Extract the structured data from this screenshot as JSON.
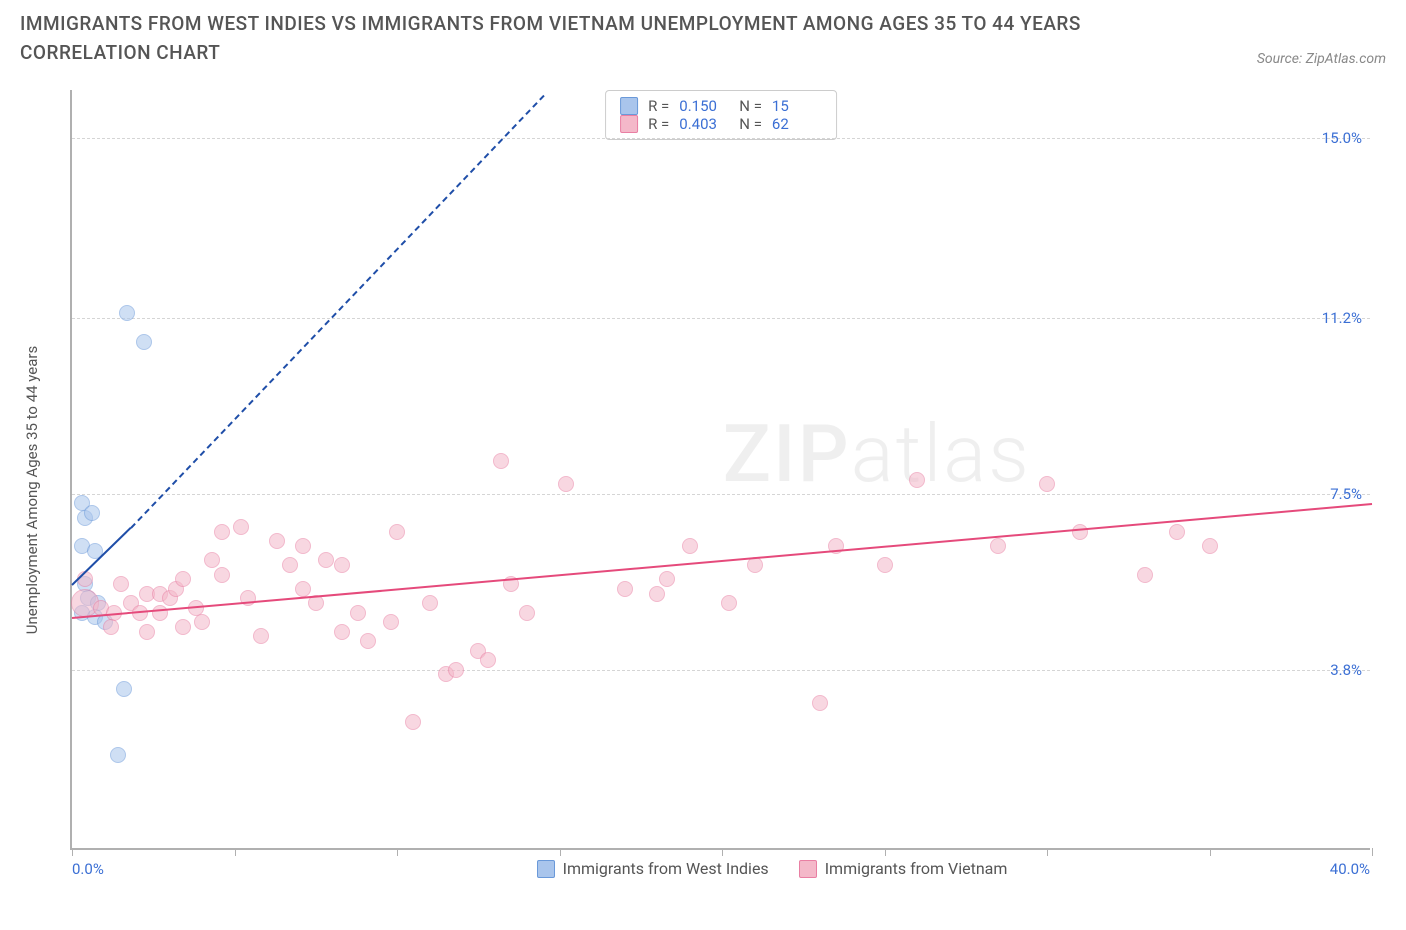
{
  "header": {
    "title": "IMMIGRANTS FROM WEST INDIES VS IMMIGRANTS FROM VIETNAM UNEMPLOYMENT AMONG AGES 35 TO 44 YEARS CORRELATION CHART",
    "source": "Source: ZipAtlas.com"
  },
  "watermark": {
    "bold": "ZIP",
    "light": "atlas"
  },
  "chart": {
    "type": "scatter",
    "background_color": "#ffffff",
    "grid_color": "#d5d5d5",
    "axis_color": "#b0b0b0",
    "y_axis": {
      "label": "Unemployment Among Ages 35 to 44 years",
      "label_fontsize": 15,
      "min": 0.0,
      "max": 16.0,
      "ticks": [
        3.8,
        7.5,
        11.2,
        15.0
      ],
      "tick_labels": [
        "3.8%",
        "7.5%",
        "11.2%",
        "15.0%"
      ],
      "tick_color": "#3b6fd4"
    },
    "x_axis": {
      "min": 0.0,
      "max": 40.0,
      "min_label": "0.0%",
      "max_label": "40.0%",
      "tick_positions": [
        0,
        5,
        10,
        15,
        20,
        25,
        30,
        35,
        40
      ],
      "tick_color": "#3b6fd4"
    },
    "series": [
      {
        "name": "Immigrants from West Indies",
        "fill_color": "#a9c5ec",
        "stroke_color": "#6a99d9",
        "fill_opacity": 0.55,
        "marker_radius": 8,
        "R": "0.150",
        "N": "15",
        "trend": {
          "x1": 0.0,
          "y1": 5.6,
          "x2": 1.8,
          "y2": 6.8,
          "solid_color": "#1f4ea8",
          "dash_extend_to_x": 14.5,
          "dash_extend_to_y": 15.9
        },
        "points": [
          {
            "x": 0.3,
            "y": 7.3
          },
          {
            "x": 0.4,
            "y": 7.0
          },
          {
            "x": 0.6,
            "y": 7.1
          },
          {
            "x": 0.3,
            "y": 6.4
          },
          {
            "x": 0.7,
            "y": 6.3
          },
          {
            "x": 0.4,
            "y": 5.6
          },
          {
            "x": 0.5,
            "y": 5.3
          },
          {
            "x": 0.8,
            "y": 5.2
          },
          {
            "x": 0.3,
            "y": 5.0
          },
          {
            "x": 0.7,
            "y": 4.9
          },
          {
            "x": 1.0,
            "y": 4.8
          },
          {
            "x": 1.6,
            "y": 3.4
          },
          {
            "x": 1.7,
            "y": 11.3
          },
          {
            "x": 2.2,
            "y": 10.7
          },
          {
            "x": 1.4,
            "y": 2.0
          }
        ]
      },
      {
        "name": "Immigrants from Vietnam",
        "fill_color": "#f4b8c9",
        "stroke_color": "#e97fa3",
        "fill_opacity": 0.55,
        "marker_radius": 8,
        "R": "0.403",
        "N": "62",
        "trend": {
          "x1": 0.0,
          "y1": 4.9,
          "x2": 40.0,
          "y2": 7.3,
          "solid_color": "#e54a7b"
        },
        "points": [
          {
            "x": 0.4,
            "y": 5.7
          },
          {
            "x": 0.4,
            "y": 5.2,
            "r": 14
          },
          {
            "x": 0.9,
            "y": 5.1
          },
          {
            "x": 1.3,
            "y": 5.0
          },
          {
            "x": 1.5,
            "y": 5.6
          },
          {
            "x": 1.2,
            "y": 4.7
          },
          {
            "x": 1.8,
            "y": 5.2
          },
          {
            "x": 2.1,
            "y": 5.0
          },
          {
            "x": 2.3,
            "y": 5.4
          },
          {
            "x": 2.3,
            "y": 4.6
          },
          {
            "x": 2.7,
            "y": 5.4
          },
          {
            "x": 2.7,
            "y": 5.0
          },
          {
            "x": 3.0,
            "y": 5.3
          },
          {
            "x": 3.2,
            "y": 5.5
          },
          {
            "x": 3.4,
            "y": 5.7
          },
          {
            "x": 3.4,
            "y": 4.7
          },
          {
            "x": 3.8,
            "y": 5.1
          },
          {
            "x": 4.0,
            "y": 4.8
          },
          {
            "x": 4.3,
            "y": 6.1
          },
          {
            "x": 4.6,
            "y": 5.8
          },
          {
            "x": 4.6,
            "y": 6.7
          },
          {
            "x": 5.2,
            "y": 6.8
          },
          {
            "x": 5.4,
            "y": 5.3
          },
          {
            "x": 5.8,
            "y": 4.5
          },
          {
            "x": 6.3,
            "y": 6.5
          },
          {
            "x": 6.7,
            "y": 6.0
          },
          {
            "x": 7.1,
            "y": 5.5
          },
          {
            "x": 7.1,
            "y": 6.4
          },
          {
            "x": 7.5,
            "y": 5.2
          },
          {
            "x": 7.8,
            "y": 6.1
          },
          {
            "x": 8.3,
            "y": 6.0
          },
          {
            "x": 8.3,
            "y": 4.6
          },
          {
            "x": 8.8,
            "y": 5.0
          },
          {
            "x": 9.1,
            "y": 4.4
          },
          {
            "x": 9.8,
            "y": 4.8
          },
          {
            "x": 10.0,
            "y": 6.7
          },
          {
            "x": 10.5,
            "y": 2.7
          },
          {
            "x": 11.0,
            "y": 5.2
          },
          {
            "x": 11.5,
            "y": 3.7
          },
          {
            "x": 11.8,
            "y": 3.8
          },
          {
            "x": 12.5,
            "y": 4.2
          },
          {
            "x": 12.8,
            "y": 4.0
          },
          {
            "x": 13.2,
            "y": 8.2
          },
          {
            "x": 13.5,
            "y": 5.6
          },
          {
            "x": 14.0,
            "y": 5.0
          },
          {
            "x": 15.2,
            "y": 7.7
          },
          {
            "x": 17.0,
            "y": 5.5
          },
          {
            "x": 18.0,
            "y": 5.4
          },
          {
            "x": 18.3,
            "y": 5.7
          },
          {
            "x": 19.0,
            "y": 6.4
          },
          {
            "x": 20.2,
            "y": 5.2
          },
          {
            "x": 21.0,
            "y": 6.0
          },
          {
            "x": 23.0,
            "y": 3.1
          },
          {
            "x": 23.5,
            "y": 6.4
          },
          {
            "x": 25.0,
            "y": 6.0
          },
          {
            "x": 26.0,
            "y": 7.8
          },
          {
            "x": 28.5,
            "y": 6.4
          },
          {
            "x": 30.0,
            "y": 7.7
          },
          {
            "x": 31.0,
            "y": 6.7
          },
          {
            "x": 33.0,
            "y": 5.8
          },
          {
            "x": 34.0,
            "y": 6.7
          },
          {
            "x": 35.0,
            "y": 6.4
          }
        ]
      }
    ],
    "stats_box": {
      "font_size": 15
    },
    "bottom_legend": {
      "items": [
        {
          "label": "Immigrants from West Indies",
          "fill": "#a9c5ec",
          "stroke": "#6a99d9"
        },
        {
          "label": "Immigrants from Vietnam",
          "fill": "#f4b8c9",
          "stroke": "#e97fa3"
        }
      ]
    }
  }
}
